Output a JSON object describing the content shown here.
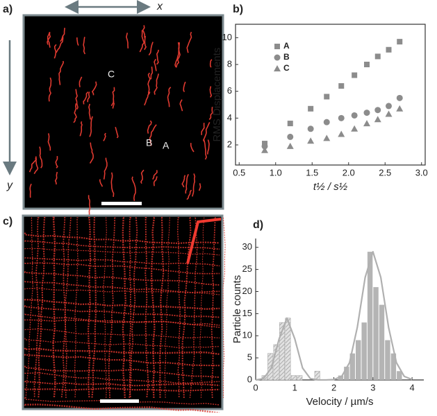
{
  "images": [
    {
      "label": "a)",
      "x_axis": "x",
      "y_axis": "y",
      "annotations": [
        "C",
        "B",
        "A"
      ]
    },
    {
      "label": "c)"
    }
  ],
  "chart_data": [
    {
      "type": "scatter",
      "label": "b)",
      "xlabel": "t½ / s½",
      "ylabel": "RMS Displacements",
      "xlim": [
        0.45,
        3.05
      ],
      "xticks": [
        0.5,
        {
          "value": 1,
          "label": "1.0"
        },
        1.5,
        {
          "value": 2,
          "label": "2.0"
        },
        2.5,
        {
          "value": 3,
          "label": "3.0"
        }
      ],
      "ylim": [
        0.5,
        11
      ],
      "yticks": [
        2,
        4,
        6,
        8,
        10
      ],
      "x": [
        0.85,
        1.2,
        1.48,
        1.7,
        1.9,
        2.08,
        2.25,
        2.4,
        2.55,
        2.7
      ],
      "series": [
        {
          "name": "A",
          "color": "#8c8c8c",
          "marker": "square",
          "values": [
            2.1,
            3.6,
            4.7,
            5.6,
            6.4,
            7.2,
            8.0,
            8.6,
            9.1,
            9.7
          ]
        },
        {
          "name": "B",
          "color": "#8c8c8c",
          "marker": "circle",
          "values": [
            1.9,
            2.6,
            3.2,
            3.7,
            4.0,
            4.2,
            4.4,
            4.6,
            4.9,
            5.5
          ]
        },
        {
          "name": "C",
          "color": "#8c8c8c",
          "marker": "triangle",
          "values": [
            1.6,
            1.9,
            2.3,
            2.5,
            2.8,
            3.2,
            3.6,
            3.9,
            4.3,
            4.7
          ]
        }
      ]
    },
    {
      "type": "histogram",
      "label": "d)",
      "xlabel": "Velocity / µm/s",
      "ylabel": "Particle counts",
      "xlim": [
        0,
        4.3
      ],
      "xticks": [
        0,
        1,
        2,
        3,
        4
      ],
      "ylim": [
        0,
        32
      ],
      "yticks": [
        0,
        5,
        10,
        15,
        20,
        25,
        30
      ],
      "bins": [
        0,
        0.15,
        0.3,
        0.45,
        0.6,
        0.75,
        0.9,
        1.05,
        1.2,
        1.35,
        1.5,
        1.65,
        1.8,
        1.95,
        2.1,
        2.25,
        2.4,
        2.55,
        2.7,
        2.85,
        3.0,
        3.15,
        3.3,
        3.45,
        3.6,
        3.75,
        3.9,
        4.05,
        4.2
      ],
      "series": [
        {
          "color": "#c8c8c8",
          "hatched": true,
          "values": [
            0,
            1,
            6,
            8,
            13,
            14,
            1,
            1,
            0,
            0,
            2,
            0,
            0,
            0,
            0,
            0,
            0,
            0,
            0,
            0,
            0,
            0,
            0,
            0,
            0,
            0,
            0,
            0
          ]
        },
        {
          "color": "#b4b4b4",
          "hatched": false,
          "values": [
            0,
            0,
            0,
            0,
            0,
            0,
            0,
            0,
            0,
            0,
            0,
            0,
            0,
            0,
            1,
            3,
            6,
            9,
            13,
            29,
            21,
            17,
            9,
            6,
            2,
            0,
            0,
            0
          ]
        }
      ],
      "curves": [
        {
          "color": "#b0b0b0",
          "x": [
            0,
            0.2,
            0.4,
            0.6,
            0.8,
            1.0,
            1.2,
            1.4,
            1.6,
            1.8,
            2.0,
            2.2,
            2.4,
            2.6,
            2.8,
            3.0,
            3.2,
            3.4,
            3.6,
            3.8,
            4.0
          ],
          "values": [
            0,
            0.3,
            2.7,
            9.3,
            14,
            9.3,
            2.7,
            0.3,
            0,
            0,
            0.1,
            0.8,
            3.9,
            11.9,
            23.2,
            29,
            23.2,
            11.9,
            3.9,
            0.8,
            0.1
          ]
        }
      ]
    }
  ]
}
